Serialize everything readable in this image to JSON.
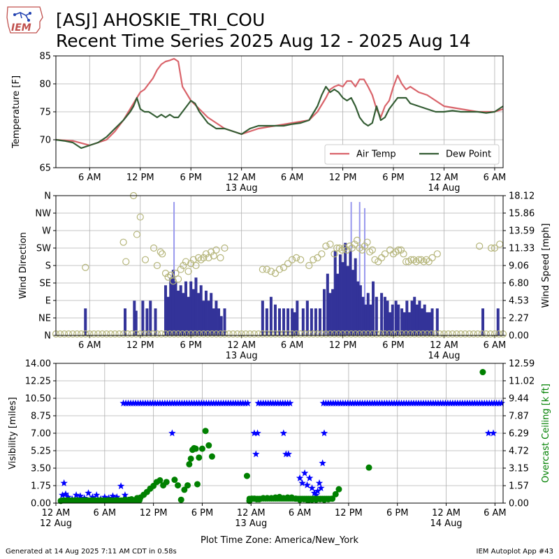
{
  "header": {
    "logo_text": "IEM",
    "title_line1": "[ASJ] AHOSKIE_TRI_COU",
    "title_line2": "Recent Time Series 2025 Aug 12 - 2025 Aug 14"
  },
  "footer": {
    "generated": "Generated at 14 Aug 2025 7:11 AM CDT in 0.58s",
    "app": "IEM Autoplot App #43"
  },
  "colors": {
    "air_temp": "#d9636a",
    "dew_point": "#335c33",
    "wind_speed_bar": "#333399",
    "wind_gust_bar": "#9999ee",
    "wind_direction": "#b5b57a",
    "visibility": "#0000ff",
    "ceiling": "#008000",
    "grid": "#b0b0b0"
  },
  "chart_data": [
    {
      "type": "line",
      "panel": "temperature",
      "ylabel": "Temperature [F]",
      "ylim": [
        65,
        85
      ],
      "yticks": [
        65,
        70,
        75,
        80,
        85
      ],
      "x_unit": "hours since 12 Aug 2025 12 AM",
      "xlim": [
        2,
        55
      ],
      "xticks": [
        {
          "h": 6,
          "label": "6 AM"
        },
        {
          "h": 12,
          "label": "12 PM"
        },
        {
          "h": 18,
          "label": "6 PM"
        },
        {
          "h": 24,
          "label": "12 AM",
          "sub": "13 Aug"
        },
        {
          "h": 30,
          "label": "6 AM"
        },
        {
          "h": 36,
          "label": "12 PM"
        },
        {
          "h": 42,
          "label": "6 PM"
        },
        {
          "h": 48,
          "label": "12 AM",
          "sub": "14 Aug"
        },
        {
          "h": 54,
          "label": "6 AM"
        }
      ],
      "legend": {
        "placement": "lower-right",
        "entries": [
          "Air Temp",
          "Dew Point"
        ]
      },
      "series": [
        {
          "name": "Air Temp",
          "x": [
            2,
            4,
            6,
            8,
            9,
            10,
            10.8,
            11.2,
            11.6,
            12,
            12.5,
            13,
            13.5,
            14,
            14.5,
            15,
            15.5,
            16,
            16.5,
            17,
            18,
            20,
            22,
            24,
            26,
            28,
            30,
            32,
            33,
            34,
            34.5,
            35,
            35.5,
            36,
            36.5,
            37,
            37.5,
            38,
            38.5,
            39,
            39.5,
            40,
            40.5,
            41,
            41.5,
            42,
            42.5,
            43,
            43.5,
            44,
            45,
            46,
            48,
            50,
            52,
            54,
            55
          ],
          "y": [
            70,
            69.8,
            69,
            70,
            71.5,
            73.5,
            75.5,
            76.5,
            77.5,
            78.5,
            79,
            80,
            81,
            82.5,
            83.5,
            84,
            84.2,
            84.5,
            84,
            79.5,
            77,
            74,
            72,
            71,
            72,
            72.5,
            73,
            73.5,
            75,
            77.5,
            79,
            79.5,
            79.8,
            79.5,
            80.5,
            80.5,
            79.5,
            80.8,
            80.8,
            79.5,
            78,
            75.5,
            74,
            76,
            77,
            79.5,
            81.5,
            80,
            79,
            79.5,
            78.5,
            78,
            76,
            75.5,
            75,
            75,
            75.5
          ]
        },
        {
          "name": "Dew Point",
          "x": [
            2,
            3,
            4,
            5,
            6,
            7,
            8,
            9,
            10,
            10.8,
            11.2,
            11.6,
            12,
            12.5,
            13,
            13.5,
            14,
            14.5,
            15,
            15.5,
            16,
            16.5,
            17,
            17.5,
            18,
            18.5,
            19,
            20,
            21,
            22,
            23,
            24,
            25,
            26,
            27,
            28,
            29,
            30,
            31,
            32,
            33,
            33.5,
            34,
            34.5,
            35,
            35.5,
            36,
            36.5,
            37,
            37.5,
            38,
            38.5,
            39,
            39.5,
            40,
            40.5,
            41,
            41.5,
            42,
            42.5,
            43,
            43.5,
            44,
            45,
            46,
            47,
            48,
            49,
            50,
            51,
            52,
            53,
            54,
            55
          ],
          "y": [
            70,
            69.8,
            69.5,
            68.5,
            69,
            69.5,
            70.5,
            72,
            73.5,
            75,
            76,
            77.5,
            75.5,
            75,
            75,
            74.5,
            74,
            74.5,
            74,
            74.5,
            74,
            74,
            75,
            76,
            77,
            76.5,
            75,
            73,
            72,
            72,
            71.5,
            71,
            72,
            72.5,
            72.5,
            72.5,
            72.5,
            72.8,
            73,
            73.5,
            76,
            78,
            79.5,
            78.5,
            79,
            78.5,
            77.5,
            77,
            77.5,
            76,
            74,
            73,
            72.5,
            73,
            76,
            73.5,
            74,
            75.5,
            76.5,
            77.5,
            77.5,
            77.5,
            76.5,
            76,
            75.5,
            75,
            75,
            75.2,
            75,
            75,
            75,
            74.8,
            75,
            76
          ]
        }
      ]
    },
    {
      "type": "bar",
      "panel": "wind",
      "ylabel": "Wind Direction",
      "ylabel_right": "Wind Speed [mph]",
      "direction_ticks": [
        "N",
        "NE",
        "E",
        "SE",
        "S",
        "SW",
        "W",
        "NW",
        "N"
      ],
      "speed_ticks": [
        "0.00",
        "2.27",
        "4.53",
        "6.80",
        "9.06",
        "11.33",
        "13.59",
        "15.86",
        "18.12"
      ],
      "speed_ylim": [
        0,
        18.12
      ],
      "series": [
        {
          "name": "Wind Speed",
          "x": [
            5.5,
            10.2,
            11.3,
            11.5,
            12.3,
            12.8,
            13.2,
            13.8,
            15.0,
            15.3,
            15.6,
            15.9,
            16.2,
            16.5,
            16.8,
            17.1,
            17.4,
            17.7,
            18.0,
            18.3,
            18.6,
            18.9,
            19.2,
            19.5,
            19.8,
            20.1,
            20.4,
            20.7,
            21.0,
            21.3,
            21.6,
            22.0,
            26.5,
            27.0,
            27.5,
            28.0,
            28.5,
            29.0,
            29.5,
            30.0,
            30.3,
            30.6,
            31.3,
            31.8,
            32.3,
            32.8,
            33.3,
            33.8,
            34.2,
            34.5,
            34.8,
            35.1,
            35.4,
            35.7,
            36.0,
            36.3,
            36.6,
            36.9,
            37.2,
            37.5,
            37.8,
            38.1,
            38.4,
            38.7,
            39.0,
            39.3,
            39.6,
            40.0,
            40.6,
            41.0,
            41.3,
            41.6,
            41.9,
            42.3,
            42.6,
            43.0,
            43.3,
            43.6,
            43.9,
            44.2,
            44.5,
            44.8,
            45.1,
            45.4,
            45.7,
            46.0,
            46.3,
            46.6,
            47.2,
            52.6,
            54.4
          ],
          "y": [
            3.5,
            3.5,
            4.5,
            3.2,
            4.5,
            3.5,
            4.5,
            3.5,
            6.5,
            5.0,
            7.5,
            8.5,
            7.0,
            5.8,
            6.5,
            5.5,
            7.0,
            5.0,
            7.0,
            6.0,
            7.5,
            5.5,
            6.5,
            4.5,
            5.8,
            4.5,
            5.5,
            3.5,
            4.5,
            3.5,
            2.5,
            3.5,
            4.5,
            3.5,
            5.0,
            4.0,
            3.5,
            3.5,
            3.5,
            3.5,
            3.0,
            4.5,
            3.5,
            4.5,
            3.5,
            3.5,
            3.5,
            6.0,
            8.0,
            5.5,
            6.0,
            11.0,
            8.0,
            10.5,
            9.5,
            12.0,
            9.0,
            11.0,
            8.5,
            10.0,
            7.0,
            6.5,
            5.0,
            4.0,
            5.5,
            4.0,
            7.0,
            5.0,
            5.5,
            5.0,
            4.5,
            3.0,
            4.0,
            4.5,
            4.0,
            3.5,
            3.0,
            4.5,
            3.0,
            4.5,
            5.0,
            4.0,
            4.5,
            3.5,
            4.0,
            3.0,
            3.0,
            3.5,
            3.5,
            3.5,
            3.5
          ]
        },
        {
          "name": "Wind Gust",
          "x": [
            16.0,
            37.0,
            38.0,
            38.6
          ],
          "y": [
            17.3,
            17.3,
            17.3,
            16.5
          ]
        },
        {
          "name": "Wind Direction",
          "unit": "degrees",
          "x": [
            5.5,
            10.0,
            10.3,
            11.2,
            11.6,
            12.0,
            12.6,
            13.6,
            14.0,
            14.4,
            14.6,
            15.0,
            15.3,
            15.6,
            15.9,
            16.2,
            16.5,
            16.8,
            17.1,
            17.4,
            17.7,
            18.0,
            18.3,
            18.6,
            18.9,
            19.2,
            19.5,
            19.8,
            20.1,
            20.4,
            20.7,
            21.0,
            21.5,
            22.0,
            26.5,
            27.0,
            27.5,
            28.0,
            28.5,
            29.0,
            29.5,
            30.0,
            30.5,
            31.0,
            32.0,
            32.5,
            33.0,
            33.5,
            34.0,
            34.5,
            35.0,
            35.3,
            35.6,
            35.9,
            36.2,
            36.5,
            36.8,
            37.1,
            37.4,
            37.7,
            38.0,
            38.3,
            38.6,
            38.9,
            39.2,
            39.5,
            39.8,
            40.2,
            40.6,
            41.0,
            41.6,
            42.0,
            42.3,
            42.6,
            42.9,
            43.2,
            43.5,
            43.8,
            44.1,
            44.4,
            44.7,
            45.0,
            45.3,
            45.6,
            45.9,
            46.2,
            46.6,
            47.2,
            52.2,
            53.6,
            54.0,
            54.6
          ],
          "y": [
            175,
            240,
            190,
            360,
            260,
            305,
            195,
            225,
            180,
            215,
            210,
            160,
            150,
            155,
            140,
            160,
            145,
            170,
            180,
            190,
            165,
            185,
            195,
            180,
            200,
            195,
            200,
            210,
            200,
            215,
            205,
            220,
            200,
            225,
            170,
            170,
            165,
            160,
            170,
            175,
            185,
            195,
            200,
            195,
            180,
            195,
            200,
            210,
            230,
            235,
            210,
            225,
            225,
            220,
            225,
            220,
            230,
            225,
            235,
            245,
            225,
            220,
            230,
            240,
            215,
            220,
            195,
            190,
            200,
            210,
            220,
            210,
            215,
            220,
            220,
            210,
            190,
            190,
            195,
            195,
            190,
            195,
            195,
            190,
            195,
            190,
            200,
            210,
            230,
            225,
            225,
            235
          ]
        }
      ]
    },
    {
      "type": "scatter",
      "panel": "visibility",
      "ylabel": "Visibility [miles]",
      "ylabel_right": "Overcast Ceiling [k ft]",
      "vis_ticks": [
        "0.00",
        "1.75",
        "3.50",
        "5.25",
        "7.00",
        "8.75",
        "10.50",
        "12.25",
        "14.00"
      ],
      "vis_ylim": [
        0,
        14
      ],
      "ceil_ticks": [
        "0.00",
        "1.57",
        "3.15",
        "4.72",
        "6.29",
        "7.87",
        "9.44",
        "11.02",
        "12.59"
      ],
      "ceil_ylim": [
        0,
        12.59
      ],
      "xticks": [
        {
          "h": 0,
          "label": "12 AM",
          "sub": "12 Aug"
        },
        {
          "h": 6,
          "label": "6 AM"
        },
        {
          "h": 12,
          "label": "12 PM"
        },
        {
          "h": 18,
          "label": "6 PM"
        },
        {
          "h": 24,
          "label": "12 AM",
          "sub": "13 Aug"
        },
        {
          "h": 30,
          "label": "6 AM"
        },
        {
          "h": 36,
          "label": "12 PM"
        },
        {
          "h": 42,
          "label": "6 PM"
        },
        {
          "h": 48,
          "label": "12 AM",
          "sub": "14 Aug"
        },
        {
          "h": 54,
          "label": "6 AM"
        }
      ],
      "xlim": [
        0,
        55
      ],
      "xlabel": "Plot Time Zone: America/New_York",
      "series": [
        {
          "name": "Visibility",
          "marker": "star",
          "x": [
            0.8,
            1.0,
            1.2,
            1.5,
            2.0,
            2.5,
            3.0,
            3.5,
            4.0,
            4.5,
            5.0,
            5.5,
            6.0,
            6.5,
            7.0,
            7.5,
            8.0,
            8.5,
            14.3,
            24.4,
            24.6,
            24.8,
            28.0,
            28.3,
            28.6,
            30.0,
            30.3,
            30.6,
            30.9,
            31.2,
            31.5,
            31.8,
            32.0,
            32.2,
            32.4,
            32.6,
            32.8,
            33.0,
            53.2,
            53.8
          ],
          "y": [
            0.8,
            2.0,
            0.9,
            0.6,
            0.4,
            0.8,
            0.7,
            0.5,
            1.0,
            0.6,
            0.8,
            0.4,
            0.6,
            0.5,
            0.7,
            0.6,
            1.7,
            0.8,
            7.0,
            7.0,
            4.9,
            7.0,
            7.0,
            4.9,
            4.9,
            2.5,
            2.0,
            3.0,
            1.8,
            2.5,
            1.5,
            1.0,
            0.8,
            1.2,
            2.0,
            1.5,
            4.0,
            7.0,
            7.0,
            7.0
          ],
          "flat_segments": [
            [
              8.3,
              23.9,
              10.0
            ],
            [
              24.9,
              28.9,
              10.0
            ],
            [
              32.9,
              55.0,
              10.0
            ]
          ]
        },
        {
          "name": "Overcast Ceiling",
          "marker": "circle",
          "x": [
            0.6,
            1.5,
            2.5,
            3.5,
            4.5,
            5.5,
            6.5,
            7.5,
            8.5,
            9.0,
            9.3,
            10.0,
            10.4,
            10.8,
            11.2,
            11.6,
            12.0,
            12.4,
            12.8,
            13.2,
            13.6,
            14.6,
            15.0,
            15.4,
            15.8,
            16.2,
            16.4,
            16.6,
            16.8,
            17.0,
            17.2,
            17.4,
            17.6,
            18.0,
            18.4,
            18.8,
            19.2,
            23.5,
            23.8,
            24.1,
            24.4,
            24.7,
            25.0,
            25.5,
            26.0,
            26.5,
            27.0,
            27.5,
            28.0,
            28.5,
            29.0,
            29.5,
            30.0,
            30.5,
            31.0,
            31.5,
            32.0,
            32.5,
            33.0,
            33.5,
            34.0,
            34.4,
            34.8,
            38.5,
            52.5
          ],
          "y": [
            0.2,
            0.25,
            0.25,
            0.25,
            0.25,
            0.25,
            0.25,
            0.25,
            0.3,
            0.3,
            0.35,
            0.45,
            0.5,
            0.75,
            1.0,
            1.3,
            1.55,
            1.9,
            2.05,
            1.6,
            1.9,
            2.1,
            1.6,
            0.3,
            1.2,
            1.6,
            3.5,
            4.0,
            4.8,
            4.95,
            4.9,
            1.7,
            4.1,
            4.9,
            6.5,
            5.2,
            4.2,
            2.45,
            0.2,
            0.4,
            0.4,
            0.35,
            0.35,
            0.45,
            0.45,
            0.45,
            0.5,
            0.55,
            0.45,
            0.5,
            0.5,
            0.4,
            0.3,
            0.35,
            0.25,
            0.3,
            0.3,
            0.35,
            0.3,
            0.35,
            0.4,
            0.8,
            1.25,
            3.2,
            11.8
          ]
        }
      ]
    }
  ]
}
